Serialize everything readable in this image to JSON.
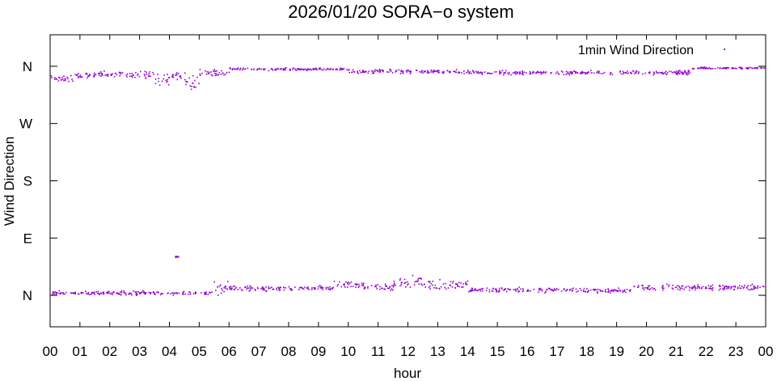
{
  "chart_data": {
    "type": "scatter",
    "title": "2026/01/20 SORA−o system",
    "xlabel": "hour",
    "ylabel": "Wind Direction",
    "xlim": [
      0,
      24
    ],
    "ylim": [
      -0.55,
      4.55
    ],
    "x_tick_labels": [
      "00",
      "01",
      "02",
      "03",
      "04",
      "05",
      "06",
      "07",
      "08",
      "09",
      "10",
      "11",
      "12",
      "13",
      "14",
      "15",
      "16",
      "17",
      "18",
      "19",
      "20",
      "21",
      "22",
      "23",
      "00"
    ],
    "y_ticks": [
      {
        "value": 0,
        "label": "N"
      },
      {
        "value": 1,
        "label": "E"
      },
      {
        "value": 2,
        "label": "S"
      },
      {
        "value": 3,
        "label": "W"
      },
      {
        "value": 4,
        "label": "N"
      }
    ],
    "y_unit_note": "quadrants: 0 = N (0°), 1 = E (90°), 2 = S (180°), 3 = W (270°), 4 = N (360°)",
    "grid": false,
    "legend_position": "top-right",
    "series": [
      {
        "name": "1min Wind Direction",
        "color": "#9400d3",
        "x_start_hour": 0,
        "x_step_minutes": 1,
        "sampling": "one point per minute; segments give approximate [start_hour, end_hour, center_value, spread] of the point cloud",
        "segments": [
          [
            0.0,
            0.75,
            3.8,
            0.1
          ],
          [
            0.75,
            1.5,
            3.85,
            0.08
          ],
          [
            1.5,
            2.5,
            3.88,
            0.07
          ],
          [
            2.5,
            3.5,
            3.86,
            0.08
          ],
          [
            3.5,
            4.0,
            3.78,
            0.15
          ],
          [
            4.0,
            4.5,
            3.85,
            0.1
          ],
          [
            4.5,
            5.0,
            3.7,
            0.2
          ],
          [
            5.0,
            6.0,
            3.9,
            0.08
          ],
          [
            6.0,
            10.0,
            3.96,
            0.03
          ],
          [
            10.0,
            14.0,
            3.92,
            0.05
          ],
          [
            14.0,
            21.5,
            3.9,
            0.05
          ],
          [
            21.5,
            24.0,
            3.98,
            0.02
          ],
          [
            0.0,
            5.4,
            0.05,
            0.05
          ],
          [
            4.1,
            4.3,
            0.68,
            0.02
          ],
          [
            5.4,
            6.0,
            0.15,
            0.15
          ],
          [
            6.0,
            9.5,
            0.13,
            0.06
          ],
          [
            9.5,
            10.5,
            0.2,
            0.1
          ],
          [
            10.5,
            11.5,
            0.15,
            0.08
          ],
          [
            11.5,
            12.5,
            0.25,
            0.13
          ],
          [
            12.5,
            14.0,
            0.2,
            0.12
          ],
          [
            14.0,
            19.5,
            0.1,
            0.06
          ],
          [
            19.5,
            24.0,
            0.15,
            0.07
          ]
        ]
      }
    ]
  }
}
